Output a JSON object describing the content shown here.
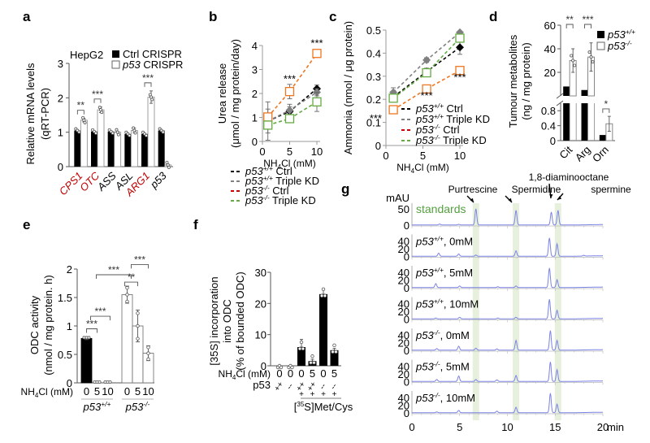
{
  "chart_data": [
    {
      "panel": "a",
      "type": "bar",
      "title": "HepG2",
      "ylabel": [
        "Relative mRNA levels",
        "(qRT-PCR)"
      ],
      "ylim": [
        0,
        3
      ],
      "yticks": [
        0,
        1,
        2,
        3
      ],
      "categories": [
        "CPS1",
        "OTC",
        "ASS",
        "ASL",
        "ARG1",
        "p53"
      ],
      "category_colors": [
        "#c00000",
        "#c00000",
        "#000000",
        "#000000",
        "#c00000",
        "#000000"
      ],
      "category_italic": [
        true,
        true,
        true,
        true,
        true,
        true
      ],
      "legend": [
        "Ctrl CRISPR",
        "p53 CRISPR"
      ],
      "legend_italic_prefix": [
        "",
        "p53"
      ],
      "series": [
        {
          "name": "Ctrl CRISPR",
          "values": [
            1.05,
            1.02,
            1.02,
            0.95,
            0.95,
            1.05
          ],
          "errors": [
            0.05,
            0.04,
            0.03,
            0.08,
            0.06,
            0.06
          ]
        },
        {
          "name": "p53 CRISPR",
          "values": [
            1.35,
            1.65,
            1.0,
            1.05,
            2.02,
            0.05
          ],
          "errors": [
            0.05,
            0.08,
            0.02,
            0.07,
            0.18,
            0.02
          ]
        }
      ],
      "significance": [
        {
          "category": "CPS1",
          "label": "**"
        },
        {
          "category": "OTC",
          "label": "***"
        },
        {
          "category": "ARG1",
          "label": "***"
        }
      ]
    },
    {
      "panel": "b",
      "type": "line",
      "ylabel": [
        "Urea release",
        "(μmol / mg protein/day)"
      ],
      "xlabel": "NH4Cl (mM)",
      "xlim": [
        0,
        10
      ],
      "ylim": [
        0,
        4
      ],
      "xticks": [
        0,
        5,
        10
      ],
      "yticks": [
        0,
        1,
        2,
        3,
        4
      ],
      "x": [
        1,
        5,
        10
      ],
      "series": [
        {
          "name": "p53+/+ Ctrl",
          "color": "#000000",
          "marker": "diamond",
          "values": [
            0.85,
            1.25,
            2.2
          ],
          "errors": [
            0.5,
            0.2,
            0.15
          ]
        },
        {
          "name": "p53+/+ Triple KD",
          "color": "#808080",
          "marker": "diamond",
          "values": [
            0.85,
            1.3,
            2.05
          ],
          "errors": [
            0.8,
            0.25,
            0.15
          ]
        },
        {
          "name": "p53-/- Ctrl",
          "color": "#ee7722",
          "marker": "square",
          "values": [
            1.02,
            2.08,
            3.67
          ],
          "errors": [
            0.1,
            0.3,
            0.05
          ]
        },
        {
          "name": "p53-/- Triple KD",
          "color": "#66aa44",
          "marker": "square",
          "values": [
            0.68,
            0.95,
            1.65
          ],
          "errors": [
            0.1,
            0.1,
            0.4
          ]
        }
      ],
      "legend": [
        {
          "prefix": "p53",
          "sup": "+/+",
          "suffix": " Ctrl",
          "color": "#000000"
        },
        {
          "prefix": "p53",
          "sup": "+/+",
          "suffix": " Triple KD",
          "color": "#808080"
        },
        {
          "prefix": "p53",
          "sup": "-/-",
          "suffix": " Ctrl",
          "color": "#cc0000"
        },
        {
          "prefix": "p53",
          "sup": "-/-",
          "suffix": " Triple KD",
          "color": "#66aa44"
        }
      ],
      "annotations": [
        {
          "x": 5,
          "label": "***"
        },
        {
          "x": 10,
          "label": "***"
        }
      ]
    },
    {
      "panel": "c",
      "type": "line",
      "ylabel": [
        "Ammonia (nmol / μg protein)"
      ],
      "xlabel": "NH4Cl (mM)",
      "xlim": [
        0,
        10
      ],
      "ylim": [
        0,
        0.5
      ],
      "xticks": [
        0,
        5,
        10
      ],
      "yticks": [
        0,
        0.1,
        0.2,
        0.3,
        0.4,
        0.5
      ],
      "x": [
        1,
        5.5,
        10
      ],
      "series": [
        {
          "name": "p53+/+ Ctrl",
          "color": "#000000",
          "marker": "diamond",
          "values": [
            0.21,
            0.32,
            0.425
          ],
          "errors": [
            0.01,
            0.015,
            0.03
          ]
        },
        {
          "name": "p53+/+ Triple KD",
          "color": "#808080",
          "marker": "diamond",
          "values": [
            0.23,
            0.37,
            0.49
          ],
          "errors": [
            0.02,
            0.01,
            0.005
          ]
        },
        {
          "name": "p53-/- Ctrl",
          "color": "#ee7722",
          "marker": "square",
          "values": [
            0.155,
            0.245,
            0.325
          ],
          "errors": [
            0.005,
            0.005,
            0.005
          ]
        },
        {
          "name": "p53-/- Triple KD",
          "color": "#66aa44",
          "marker": "square",
          "values": [
            0.205,
            0.315,
            0.465
          ],
          "errors": [
            0.005,
            0.005,
            0.005
          ]
        }
      ],
      "legend": [
        {
          "prefix": "p53",
          "sup": "+/+",
          "suffix": " Ctrl",
          "color": "#000000"
        },
        {
          "prefix": "p53",
          "sup": "+/+",
          "suffix": " Triple KD",
          "color": "#808080"
        },
        {
          "prefix": "p53",
          "sup": "-/-",
          "suffix": " Ctrl",
          "color": "#cc0000"
        },
        {
          "prefix": "p53",
          "sup": "-/-",
          "suffix": " Triple KD",
          "color": "#66aa44"
        }
      ],
      "annotations": [
        {
          "x": 1,
          "label": "***"
        },
        {
          "x": 5.5,
          "label": "***"
        },
        {
          "x": 10,
          "label": "***"
        }
      ]
    },
    {
      "panel": "d",
      "type": "bar",
      "ylabel": [
        "Tumour metabolites",
        "(ng / mg protein)"
      ],
      "axis_break": true,
      "ylim_lower": [
        0,
        1
      ],
      "yticks_lower": [
        0,
        0.4,
        0.8
      ],
      "ylim_upper": [
        0,
        60
      ],
      "yticks_upper": [
        20,
        40,
        60
      ],
      "categories": [
        "Cit",
        "Arg",
        "Orn"
      ],
      "legend": [
        {
          "prefix": "p53",
          "sup": "+/+"
        },
        {
          "prefix": "p53",
          "sup": "-/-"
        }
      ],
      "series": [
        {
          "name": "p53+/+",
          "values": [
            8,
            5,
            0.15
          ],
          "errors": [
            2,
            1,
            0.12
          ]
        },
        {
          "name": "p53-/-",
          "values": [
            30,
            33,
            0.45
          ],
          "errors": [
            10,
            12,
            0.2
          ]
        }
      ],
      "significance": [
        {
          "category": "Cit",
          "label": "**"
        },
        {
          "category": "Arg",
          "label": "***"
        },
        {
          "category": "Orn",
          "label": "*"
        }
      ]
    },
    {
      "panel": "e",
      "type": "bar",
      "ylabel": [
        "ODC activity",
        "(nmol / mg protein. h)"
      ],
      "xlabel": "NH4Cl (mM)",
      "ylim": [
        0,
        2
      ],
      "yticks": [
        0,
        0.5,
        1,
        1.5,
        2
      ],
      "yticklabels": [
        "0",
        "0.5",
        "1",
        "1.5",
        "2"
      ],
      "groups": [
        {
          "name": "p53+/+",
          "categories": [
            "0",
            "5",
            "10"
          ],
          "values": [
            0.78,
            0.0,
            0.0
          ],
          "errors": [
            0.02,
            0,
            0
          ],
          "fill": "#000000"
        },
        {
          "name": "p53-/-",
          "categories": [
            "0",
            "5",
            "10"
          ],
          "values": [
            1.55,
            1.0,
            0.52
          ],
          "errors": [
            0.15,
            0.28,
            0.13
          ],
          "fill": "#ffffff"
        }
      ],
      "significance": [
        "***",
        "***",
        "***",
        "**",
        "***"
      ]
    },
    {
      "panel": "f",
      "type": "bar",
      "ylabel": [
        "[35S] incorporation",
        "into ODC",
        "(% of bounded ODC)"
      ],
      "ylim": [
        0,
        30
      ],
      "yticks": [
        0,
        10,
        20,
        30
      ],
      "row_labels": [
        "NH4Cl (mM)",
        "p53"
      ],
      "nh4cl": [
        "0",
        "0",
        "0",
        "5",
        "0",
        "5"
      ],
      "p53": [
        "+/+",
        "-/-",
        "+/+",
        "+/+",
        "-/-",
        "-/-"
      ],
      "met_cys": [
        "",
        "",
        "+",
        "+",
        "+",
        "+"
      ],
      "footer": "Met/Cys",
      "footer_sup": "35",
      "values": [
        0,
        0,
        6,
        1.5,
        23,
        5
      ],
      "errors": [
        0,
        0,
        2.5,
        0.6,
        1.8,
        0.6
      ]
    },
    {
      "panel": "g",
      "type": "line",
      "y_unit": "mAU",
      "xlabel": "min",
      "xlim": [
        0,
        20
      ],
      "xticks": [
        0,
        5,
        10,
        15,
        20
      ],
      "highlight_bands_min": [
        6.7,
        10.9,
        15.3
      ],
      "highlight_color": "#e6f0dc",
      "trace_color": "#7b83e6",
      "peak_labels": [
        {
          "label": "Purtrescine",
          "x": 6.7
        },
        {
          "label": "Spermidine",
          "x": 10.9
        },
        {
          "label": "1,8-diaminooctane",
          "x": 14.6
        },
        {
          "label": "spermine",
          "x": 15.3
        }
      ],
      "traces": [
        {
          "label": "standards",
          "label_color": "#55a040",
          "yticks": [
            "0",
            "50"
          ],
          "ymax": 60,
          "peaks": [
            [
              6.7,
              50
            ],
            [
              10.9,
              45
            ],
            [
              14.6,
              40
            ],
            [
              15.3,
              45
            ]
          ],
          "small": [
            [
              2.9,
              3
            ],
            [
              4.9,
              2
            ]
          ]
        },
        {
          "label_prefix": "p53",
          "sup": "+/+",
          "label_suffix": ", 0mM",
          "yticks": [
            "0",
            "20",
            "40"
          ],
          "ymax": 50,
          "peaks": [
            [
              2.8,
              8
            ],
            [
              4.9,
              6
            ],
            [
              6.7,
              3
            ],
            [
              10.9,
              14
            ],
            [
              14.4,
              47
            ],
            [
              15.2,
              32
            ],
            [
              18,
              2
            ]
          ]
        },
        {
          "label_prefix": "p53",
          "sup": "+/+",
          "label_suffix": ", 5mM",
          "yticks": [
            "0",
            "20",
            "40"
          ],
          "ymax": 50,
          "peaks": [
            [
              2.5,
              10
            ],
            [
              5,
              4
            ],
            [
              9,
              2
            ],
            [
              10.9,
              4
            ],
            [
              14.4,
              50
            ],
            [
              15.2,
              20
            ]
          ]
        },
        {
          "label_prefix": "p53",
          "sup": "+/+",
          "label_suffix": ", 10mM",
          "yticks": [
            "0",
            "20",
            "40"
          ],
          "ymax": 50,
          "peaks": [
            [
              2.5,
              2
            ],
            [
              5,
              4
            ],
            [
              9,
              2
            ],
            [
              10.9,
              4
            ],
            [
              14.4,
              50
            ],
            [
              15.2,
              22
            ]
          ]
        },
        {
          "label_prefix": "p53",
          "sup": "-/-",
          "label_suffix": ", 0mM",
          "yticks": [
            "0",
            "20",
            "40"
          ],
          "ymax": 50,
          "peaks": [
            [
              2.6,
              4
            ],
            [
              4.9,
              10
            ],
            [
              6.7,
              5
            ],
            [
              8.9,
              3
            ],
            [
              10.9,
              25
            ],
            [
              14.5,
              50
            ],
            [
              15.2,
              25
            ]
          ]
        },
        {
          "label_prefix": "p53",
          "sup": "-/-",
          "label_suffix": ", 5mM",
          "yticks": [
            "0",
            "20",
            "40"
          ],
          "ymax": 50,
          "peaks": [
            [
              2.6,
              5
            ],
            [
              4.9,
              14
            ],
            [
              6.7,
              5
            ],
            [
              8.9,
              4
            ],
            [
              10.9,
              15
            ],
            [
              14.5,
              50
            ],
            [
              15.2,
              30
            ]
          ]
        },
        {
          "label_prefix": "p53",
          "sup": "-/-",
          "label_suffix": ", 10mM",
          "yticks": [
            "0",
            "20",
            "40"
          ],
          "ymax": 50,
          "peaks": [
            [
              2.6,
              2
            ],
            [
              4.9,
              6
            ],
            [
              8.9,
              4
            ],
            [
              10.9,
              14
            ],
            [
              14.5,
              50
            ],
            [
              15.2,
              22
            ]
          ]
        }
      ]
    }
  ],
  "panels": {
    "a": "a",
    "b": "b",
    "c": "c",
    "d": "d",
    "e": "e",
    "f": "f",
    "g": "g"
  }
}
